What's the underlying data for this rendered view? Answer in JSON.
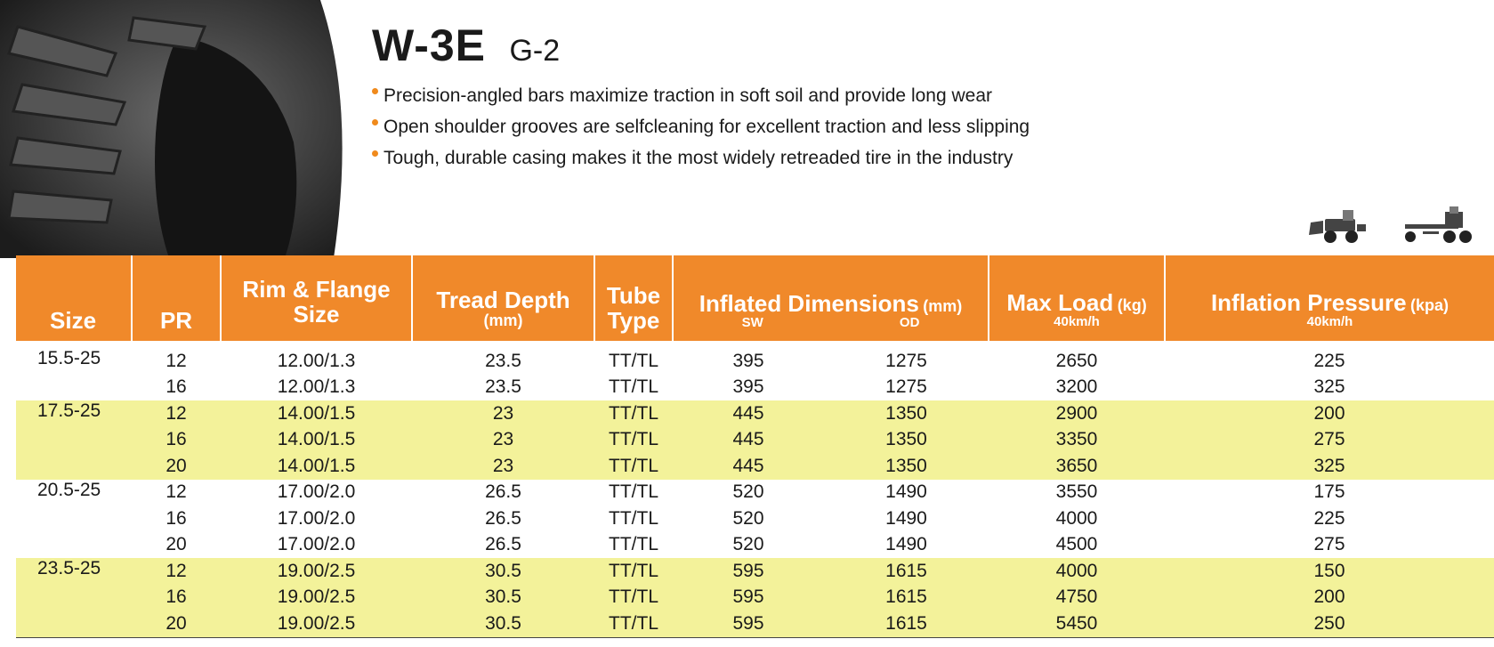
{
  "product": {
    "model": "W-3E",
    "pattern": "G-2"
  },
  "features": [
    "Precision-angled bars maximize traction in soft soil and provide long wear",
    "Open shoulder grooves are selfcleaning for excellent traction and less slipping",
    "Tough, durable casing makes it the most widely retreaded tire in the industry"
  ],
  "colors": {
    "header": "#f0892a",
    "highlight": "#f3f29a",
    "bullet": "#f08a1c"
  },
  "icons": [
    "tire-image",
    "wheel-loader-icon",
    "motor-grader-icon"
  ],
  "table": {
    "headers": {
      "size": "Size",
      "pr": "PR",
      "rim": [
        "Rim & Flange",
        "Size"
      ],
      "tread": "Tread Depth",
      "tread_unit": "(mm)",
      "tube": [
        "Tube",
        "Type"
      ],
      "dims": "Inflated Dimensions",
      "dims_unit": "(mm)",
      "sw": "SW",
      "od": "OD",
      "load": "Max Load",
      "load_unit": "(kg)",
      "load_speed": "40km/h",
      "pressure": "Inflation Pressure",
      "pressure_unit": "(kpa)",
      "pressure_speed": "40km/h"
    },
    "rows": [
      {
        "size": "15.5-25",
        "pr": "12",
        "rim": "12.00/1.3",
        "tread": "23.5",
        "tube": "TT/TL",
        "sw": "395",
        "od": "1275",
        "load": "2650",
        "pressure": "225"
      },
      {
        "size": "",
        "pr": "16",
        "rim": "12.00/1.3",
        "tread": "23.5",
        "tube": "TT/TL",
        "sw": "395",
        "od": "1275",
        "load": "3200",
        "pressure": "325"
      },
      {
        "size": "17.5-25",
        "pr": "12",
        "rim": "14.00/1.5",
        "tread": "23",
        "tube": "TT/TL",
        "sw": "445",
        "od": "1350",
        "load": "2900",
        "pressure": "200"
      },
      {
        "size": "",
        "pr": "16",
        "rim": "14.00/1.5",
        "tread": "23",
        "tube": "TT/TL",
        "sw": "445",
        "od": "1350",
        "load": "3350",
        "pressure": "275"
      },
      {
        "size": "",
        "pr": "20",
        "rim": "14.00/1.5",
        "tread": "23",
        "tube": "TT/TL",
        "sw": "445",
        "od": "1350",
        "load": "3650",
        "pressure": "325"
      },
      {
        "size": "20.5-25",
        "pr": "12",
        "rim": "17.00/2.0",
        "tread": "26.5",
        "tube": "TT/TL",
        "sw": "520",
        "od": "1490",
        "load": "3550",
        "pressure": "175"
      },
      {
        "size": "",
        "pr": "16",
        "rim": "17.00/2.0",
        "tread": "26.5",
        "tube": "TT/TL",
        "sw": "520",
        "od": "1490",
        "load": "4000",
        "pressure": "225"
      },
      {
        "size": "",
        "pr": "20",
        "rim": "17.00/2.0",
        "tread": "26.5",
        "tube": "TT/TL",
        "sw": "520",
        "od": "1490",
        "load": "4500",
        "pressure": "275"
      },
      {
        "size": "23.5-25",
        "pr": "12",
        "rim": "19.00/2.5",
        "tread": "30.5",
        "tube": "TT/TL",
        "sw": "595",
        "od": "1615",
        "load": "4000",
        "pressure": "150"
      },
      {
        "size": "",
        "pr": "16",
        "rim": "19.00/2.5",
        "tread": "30.5",
        "tube": "TT/TL",
        "sw": "595",
        "od": "1615",
        "load": "4750",
        "pressure": "200"
      },
      {
        "size": "",
        "pr": "20",
        "rim": "19.00/2.5",
        "tread": "30.5",
        "tube": "TT/TL",
        "sw": "595",
        "od": "1615",
        "load": "5450",
        "pressure": "250"
      }
    ]
  }
}
